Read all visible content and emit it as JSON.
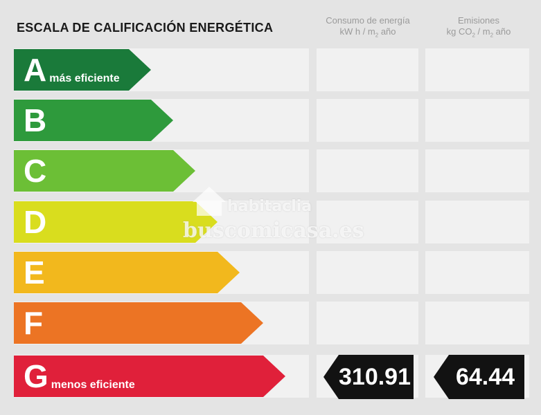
{
  "title": "ESCALA DE CALIFICACIÓN ENERGÉTICA",
  "columns": {
    "consumo": {
      "line1": "Consumo de energía",
      "line2a": "kW h / m",
      "sub": "2",
      "line2b": " año"
    },
    "emisiones": {
      "line1": "Emisiones",
      "line2a": "kg CO",
      "sub1": "2",
      "line2b": " / m",
      "sub2": "2",
      "line2c": " año"
    }
  },
  "ratings": [
    {
      "letter": "A",
      "desc": "más eficiente",
      "color": "#1a7a3a"
    },
    {
      "letter": "B",
      "desc": "",
      "color": "#2e9a3c"
    },
    {
      "letter": "C",
      "desc": "",
      "color": "#6cbf36"
    },
    {
      "letter": "D",
      "desc": "",
      "color": "#d9dd1e"
    },
    {
      "letter": "E",
      "desc": "",
      "color": "#f2b81d"
    },
    {
      "letter": "F",
      "desc": "",
      "color": "#ec7424"
    },
    {
      "letter": "G",
      "desc": "menos eficiente",
      "color": "#e0203a"
    }
  ],
  "current": {
    "letter": "G",
    "consumo": "310.91",
    "emisiones": "64.44"
  },
  "watermark": {
    "line1": "habitaclia",
    "line2": "buscomicasa.es"
  }
}
